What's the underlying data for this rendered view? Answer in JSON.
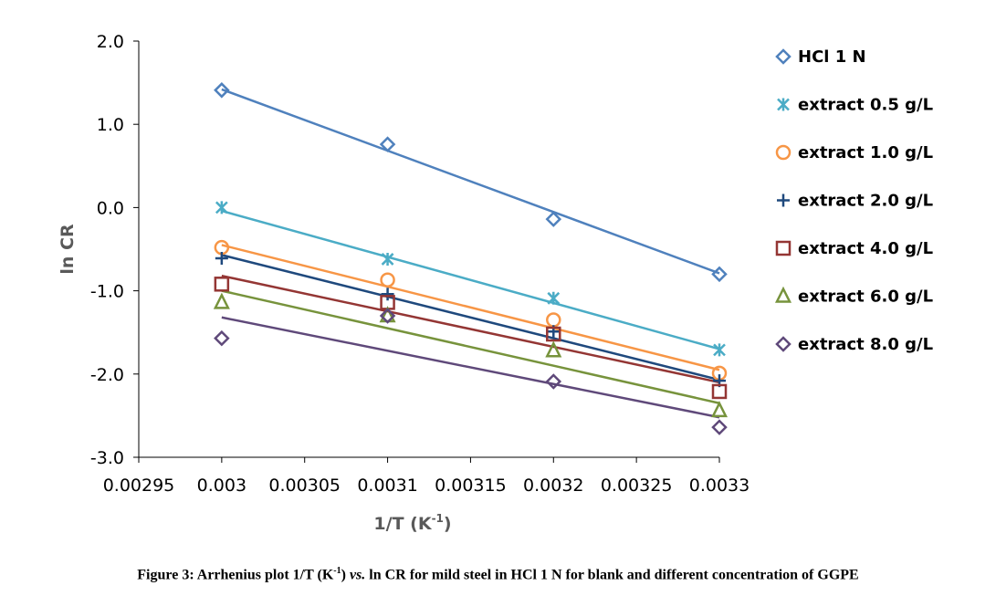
{
  "chart_data": {
    "type": "scatter",
    "xlabel": "1/T (K",
    "xlabel_sup": "-1",
    "xlabel_close": ")",
    "ylabel": "ln CR",
    "xlim": [
      0.00295,
      0.0033
    ],
    "ylim": [
      -3.0,
      2.0
    ],
    "x_ticks": [
      "0.00295",
      "0.003",
      "0.00305",
      "0.0031",
      "0.00315",
      "0.0032",
      "0.00325",
      "0.0033"
    ],
    "x_tick_values": [
      0.00295,
      0.003,
      0.00305,
      0.0031,
      0.00315,
      0.0032,
      0.00325,
      0.0033
    ],
    "y_ticks": [
      "2.0",
      "1.0",
      "0.0",
      "-1.0",
      "-2.0",
      "-3.0"
    ],
    "y_tick_values": [
      2.0,
      1.0,
      0.0,
      -1.0,
      -2.0,
      -3.0
    ],
    "grid": false,
    "legend_position": "right",
    "trendline": "linear",
    "x": [
      0.003,
      0.0031,
      0.0032,
      0.0033
    ],
    "series": [
      {
        "name": "HCl 1 N",
        "marker": "diamond",
        "color": "#4f81bd",
        "values": [
          1.41,
          0.76,
          -0.14,
          -0.8
        ],
        "fit": [
          1.42,
          0.69,
          -0.05,
          -0.79
        ]
      },
      {
        "name": "extract 0.5 g/L",
        "marker": "asterisk",
        "color": "#4bacc6",
        "values": [
          0.0,
          -0.62,
          -1.09,
          -1.71
        ],
        "fit": [
          -0.04,
          -0.6,
          -1.15,
          -1.7
        ]
      },
      {
        "name": "extract 1.0 g/L",
        "marker": "circle",
        "color": "#f79646",
        "values": [
          -0.48,
          -0.87,
          -1.35,
          -1.99
        ],
        "fit": [
          -0.45,
          -0.95,
          -1.45,
          -1.95
        ]
      },
      {
        "name": "extract 2.0 g/L",
        "marker": "plus",
        "color": "#1f497d",
        "values": [
          -0.61,
          -1.04,
          -1.49,
          -2.08
        ],
        "fit": [
          -0.57,
          -1.07,
          -1.57,
          -2.07
        ]
      },
      {
        "name": "extract 4.0 g/L",
        "marker": "square",
        "color": "#943634",
        "values": [
          -0.92,
          -1.14,
          -1.52,
          -2.21
        ],
        "fit": [
          -0.82,
          -1.25,
          -1.66,
          -2.1
        ]
      },
      {
        "name": "extract 6.0 g/L",
        "marker": "triangle",
        "color": "#77933c",
        "values": [
          -1.14,
          -1.3,
          -1.72,
          -2.44
        ],
        "fit": [
          -1.0,
          -1.45,
          -1.9,
          -2.35
        ]
      },
      {
        "name": "extract 8.0 g/L",
        "marker": "diamond",
        "color": "#5f497a",
        "values": [
          -1.57,
          -1.3,
          -2.09,
          -2.64
        ],
        "fit": [
          -1.32,
          -1.72,
          -2.12,
          -2.52
        ]
      }
    ]
  },
  "caption": {
    "prefix": "Figure 3: Arrhenius plot 1/T (K",
    "sup": "-1",
    "mid": ") ",
    "vs": "vs.",
    "suffix": " ln CR for mild steel in HCl 1 N for blank and different concentration of GGPE"
  }
}
